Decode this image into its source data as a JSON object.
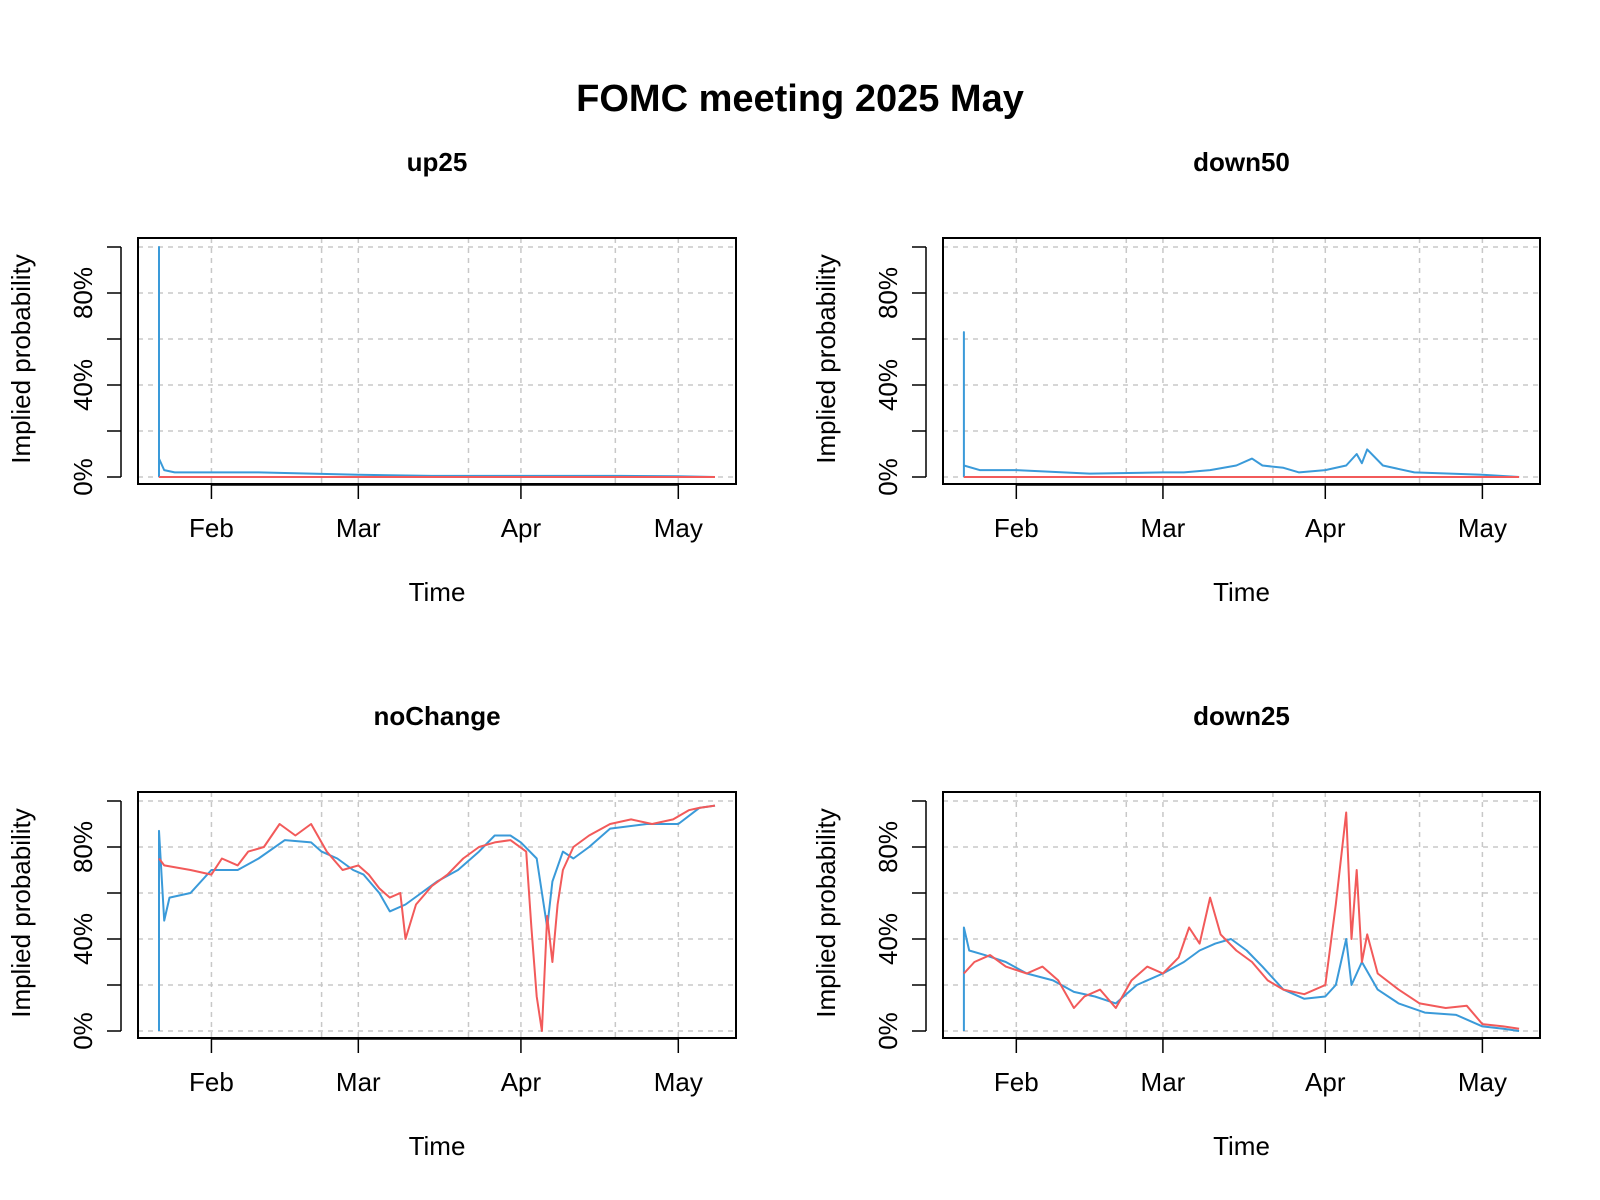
{
  "figure": {
    "title": "FOMC meeting 2025 May",
    "colors": {
      "series_a": "#3A9AD9",
      "series_b": "#F25A5A",
      "grid": "#c8c8c8",
      "axis": "#000000"
    }
  },
  "chart_data": [
    {
      "type": "line",
      "title": "up25",
      "xlabel": "Time",
      "ylabel": "Implied probability",
      "xlim": [
        "2025-01-18",
        "2025-05-12"
      ],
      "ylim": [
        0,
        100
      ],
      "x_ticks": [
        {
          "date": "2025-02-01",
          "label": "Feb"
        },
        {
          "date": "2025-03-01",
          "label": "Mar"
        },
        {
          "date": "2025-04-01",
          "label": "Apr"
        },
        {
          "date": "2025-05-01",
          "label": "May"
        }
      ],
      "y_ticks": [
        {
          "value": 0,
          "label": "0%"
        },
        {
          "value": 20,
          "label": ""
        },
        {
          "value": 40,
          "label": "40%"
        },
        {
          "value": 60,
          "label": ""
        },
        {
          "value": 80,
          "label": "80%"
        },
        {
          "value": 100,
          "label": ""
        }
      ],
      "grid": true,
      "series": [
        {
          "color": "#3A9AD9",
          "points": [
            [
              "2025-01-22",
              0
            ],
            [
              "2025-01-22",
              100
            ],
            [
              "2025-01-22",
              8
            ],
            [
              "2025-01-23",
              3
            ],
            [
              "2025-01-25",
              2
            ],
            [
              "2025-02-01",
              2
            ],
            [
              "2025-02-10",
              2
            ],
            [
              "2025-02-20",
              1.5
            ],
            [
              "2025-03-01",
              1
            ],
            [
              "2025-03-15",
              0.5
            ],
            [
              "2025-04-01",
              0.5
            ],
            [
              "2025-04-10",
              0.5
            ],
            [
              "2025-04-20",
              0.5
            ],
            [
              "2025-05-01",
              0.3
            ],
            [
              "2025-05-08",
              0
            ]
          ]
        },
        {
          "color": "#F25A5A",
          "points": [
            [
              "2025-01-22",
              0
            ],
            [
              "2025-05-08",
              0
            ]
          ]
        }
      ]
    },
    {
      "type": "line",
      "title": "down50",
      "xlabel": "Time",
      "ylabel": "Implied probability",
      "xlim": [
        "2025-01-18",
        "2025-05-12"
      ],
      "ylim": [
        0,
        100
      ],
      "x_ticks": [
        {
          "date": "2025-02-01",
          "label": "Feb"
        },
        {
          "date": "2025-03-01",
          "label": "Mar"
        },
        {
          "date": "2025-04-01",
          "label": "Apr"
        },
        {
          "date": "2025-05-01",
          "label": "May"
        }
      ],
      "y_ticks": [
        {
          "value": 0,
          "label": "0%"
        },
        {
          "value": 20,
          "label": ""
        },
        {
          "value": 40,
          "label": "40%"
        },
        {
          "value": 60,
          "label": ""
        },
        {
          "value": 80,
          "label": "80%"
        },
        {
          "value": 100,
          "label": ""
        }
      ],
      "grid": true,
      "series": [
        {
          "color": "#3A9AD9",
          "points": [
            [
              "2025-01-22",
              0
            ],
            [
              "2025-01-22",
              63
            ],
            [
              "2025-01-22",
              5
            ],
            [
              "2025-01-25",
              3
            ],
            [
              "2025-02-01",
              3
            ],
            [
              "2025-02-15",
              1.5
            ],
            [
              "2025-03-01",
              2
            ],
            [
              "2025-03-05",
              2
            ],
            [
              "2025-03-10",
              3
            ],
            [
              "2025-03-15",
              5
            ],
            [
              "2025-03-18",
              8
            ],
            [
              "2025-03-20",
              5
            ],
            [
              "2025-03-24",
              4
            ],
            [
              "2025-03-27",
              2
            ],
            [
              "2025-04-01",
              3
            ],
            [
              "2025-04-05",
              5
            ],
            [
              "2025-04-07",
              10
            ],
            [
              "2025-04-08",
              6
            ],
            [
              "2025-04-09",
              12
            ],
            [
              "2025-04-12",
              5
            ],
            [
              "2025-04-18",
              2
            ],
            [
              "2025-05-01",
              1
            ],
            [
              "2025-05-08",
              0
            ]
          ]
        },
        {
          "color": "#F25A5A",
          "points": [
            [
              "2025-01-22",
              0
            ],
            [
              "2025-05-08",
              0
            ]
          ]
        }
      ]
    },
    {
      "type": "line",
      "title": "noChange",
      "xlabel": "Time",
      "ylabel": "Implied probability",
      "xlim": [
        "2025-01-18",
        "2025-05-12"
      ],
      "ylim": [
        0,
        100
      ],
      "x_ticks": [
        {
          "date": "2025-02-01",
          "label": "Feb"
        },
        {
          "date": "2025-03-01",
          "label": "Mar"
        },
        {
          "date": "2025-04-01",
          "label": "Apr"
        },
        {
          "date": "2025-05-01",
          "label": "May"
        }
      ],
      "y_ticks": [
        {
          "value": 0,
          "label": "0%"
        },
        {
          "value": 20,
          "label": ""
        },
        {
          "value": 40,
          "label": "40%"
        },
        {
          "value": 60,
          "label": ""
        },
        {
          "value": 80,
          "label": "80%"
        },
        {
          "value": 100,
          "label": ""
        }
      ],
      "grid": true,
      "series": [
        {
          "color": "#3A9AD9",
          "points": [
            [
              "2025-01-22",
              0
            ],
            [
              "2025-01-22",
              87
            ],
            [
              "2025-01-23",
              48
            ],
            [
              "2025-01-24",
              58
            ],
            [
              "2025-01-28",
              60
            ],
            [
              "2025-02-01",
              70
            ],
            [
              "2025-02-06",
              70
            ],
            [
              "2025-02-10",
              75
            ],
            [
              "2025-02-15",
              83
            ],
            [
              "2025-02-20",
              82
            ],
            [
              "2025-02-22",
              78
            ],
            [
              "2025-02-25",
              75
            ],
            [
              "2025-02-28",
              70
            ],
            [
              "2025-03-02",
              68
            ],
            [
              "2025-03-05",
              60
            ],
            [
              "2025-03-07",
              52
            ],
            [
              "2025-03-10",
              55
            ],
            [
              "2025-03-13",
              60
            ],
            [
              "2025-03-16",
              65
            ],
            [
              "2025-03-20",
              70
            ],
            [
              "2025-03-24",
              78
            ],
            [
              "2025-03-27",
              85
            ],
            [
              "2025-03-30",
              85
            ],
            [
              "2025-04-01",
              82
            ],
            [
              "2025-04-04",
              75
            ],
            [
              "2025-04-06",
              45
            ],
            [
              "2025-04-07",
              65
            ],
            [
              "2025-04-09",
              78
            ],
            [
              "2025-04-11",
              75
            ],
            [
              "2025-04-14",
              80
            ],
            [
              "2025-04-18",
              88
            ],
            [
              "2025-04-25",
              90
            ],
            [
              "2025-05-01",
              90
            ],
            [
              "2025-05-05",
              97
            ],
            [
              "2025-05-08",
              98
            ]
          ]
        },
        {
          "color": "#F25A5A",
          "points": [
            [
              "2025-01-22",
              75
            ],
            [
              "2025-01-23",
              72
            ],
            [
              "2025-01-28",
              70
            ],
            [
              "2025-02-01",
              68
            ],
            [
              "2025-02-03",
              75
            ],
            [
              "2025-02-06",
              72
            ],
            [
              "2025-02-08",
              78
            ],
            [
              "2025-02-11",
              80
            ],
            [
              "2025-02-14",
              90
            ],
            [
              "2025-02-17",
              85
            ],
            [
              "2025-02-20",
              90
            ],
            [
              "2025-02-23",
              78
            ],
            [
              "2025-02-26",
              70
            ],
            [
              "2025-03-01",
              72
            ],
            [
              "2025-03-03",
              68
            ],
            [
              "2025-03-05",
              62
            ],
            [
              "2025-03-07",
              58
            ],
            [
              "2025-03-09",
              60
            ],
            [
              "2025-03-10",
              40
            ],
            [
              "2025-03-12",
              55
            ],
            [
              "2025-03-15",
              63
            ],
            [
              "2025-03-18",
              68
            ],
            [
              "2025-03-21",
              75
            ],
            [
              "2025-03-24",
              80
            ],
            [
              "2025-03-27",
              82
            ],
            [
              "2025-03-30",
              83
            ],
            [
              "2025-04-02",
              78
            ],
            [
              "2025-04-03",
              45
            ],
            [
              "2025-04-04",
              15
            ],
            [
              "2025-04-05",
              0
            ],
            [
              "2025-04-06",
              50
            ],
            [
              "2025-04-07",
              30
            ],
            [
              "2025-04-08",
              55
            ],
            [
              "2025-04-09",
              70
            ],
            [
              "2025-04-11",
              80
            ],
            [
              "2025-04-14",
              85
            ],
            [
              "2025-04-18",
              90
            ],
            [
              "2025-04-22",
              92
            ],
            [
              "2025-04-26",
              90
            ],
            [
              "2025-04-30",
              92
            ],
            [
              "2025-05-03",
              96
            ],
            [
              "2025-05-05",
              97
            ],
            [
              "2025-05-08",
              98
            ]
          ]
        }
      ]
    },
    {
      "type": "line",
      "title": "down25",
      "xlabel": "Time",
      "ylabel": "Implied probability",
      "xlim": [
        "2025-01-18",
        "2025-05-12"
      ],
      "ylim": [
        0,
        100
      ],
      "x_ticks": [
        {
          "date": "2025-02-01",
          "label": "Feb"
        },
        {
          "date": "2025-03-01",
          "label": "Mar"
        },
        {
          "date": "2025-04-01",
          "label": "Apr"
        },
        {
          "date": "2025-05-01",
          "label": "May"
        }
      ],
      "y_ticks": [
        {
          "value": 0,
          "label": "0%"
        },
        {
          "value": 20,
          "label": ""
        },
        {
          "value": 40,
          "label": "40%"
        },
        {
          "value": 60,
          "label": ""
        },
        {
          "value": 80,
          "label": "80%"
        },
        {
          "value": 100,
          "label": ""
        }
      ],
      "grid": true,
      "series": [
        {
          "color": "#3A9AD9",
          "points": [
            [
              "2025-01-22",
              0
            ],
            [
              "2025-01-22",
              45
            ],
            [
              "2025-01-23",
              35
            ],
            [
              "2025-01-26",
              33
            ],
            [
              "2025-01-30",
              30
            ],
            [
              "2025-02-03",
              25
            ],
            [
              "2025-02-08",
              22
            ],
            [
              "2025-02-12",
              17
            ],
            [
              "2025-02-16",
              15
            ],
            [
              "2025-02-20",
              12
            ],
            [
              "2025-02-24",
              20
            ],
            [
              "2025-03-01",
              25
            ],
            [
              "2025-03-05",
              30
            ],
            [
              "2025-03-08",
              35
            ],
            [
              "2025-03-11",
              38
            ],
            [
              "2025-03-14",
              40
            ],
            [
              "2025-03-17",
              35
            ],
            [
              "2025-03-20",
              28
            ],
            [
              "2025-03-24",
              18
            ],
            [
              "2025-03-28",
              14
            ],
            [
              "2025-04-01",
              15
            ],
            [
              "2025-04-03",
              20
            ],
            [
              "2025-04-05",
              40
            ],
            [
              "2025-04-06",
              20
            ],
            [
              "2025-04-08",
              30
            ],
            [
              "2025-04-11",
              18
            ],
            [
              "2025-04-15",
              12
            ],
            [
              "2025-04-20",
              8
            ],
            [
              "2025-04-26",
              7
            ],
            [
              "2025-05-01",
              2
            ],
            [
              "2025-05-05",
              1
            ],
            [
              "2025-05-08",
              0
            ]
          ]
        },
        {
          "color": "#F25A5A",
          "points": [
            [
              "2025-01-22",
              25
            ],
            [
              "2025-01-24",
              30
            ],
            [
              "2025-01-27",
              33
            ],
            [
              "2025-01-30",
              28
            ],
            [
              "2025-02-03",
              25
            ],
            [
              "2025-02-06",
              28
            ],
            [
              "2025-02-09",
              22
            ],
            [
              "2025-02-12",
              10
            ],
            [
              "2025-02-14",
              15
            ],
            [
              "2025-02-17",
              18
            ],
            [
              "2025-02-20",
              10
            ],
            [
              "2025-02-23",
              22
            ],
            [
              "2025-02-26",
              28
            ],
            [
              "2025-03-01",
              25
            ],
            [
              "2025-03-04",
              32
            ],
            [
              "2025-03-06",
              45
            ],
            [
              "2025-03-08",
              38
            ],
            [
              "2025-03-10",
              58
            ],
            [
              "2025-03-12",
              42
            ],
            [
              "2025-03-15",
              35
            ],
            [
              "2025-03-18",
              30
            ],
            [
              "2025-03-21",
              22
            ],
            [
              "2025-03-24",
              18
            ],
            [
              "2025-03-28",
              16
            ],
            [
              "2025-04-01",
              20
            ],
            [
              "2025-04-03",
              55
            ],
            [
              "2025-04-05",
              95
            ],
            [
              "2025-04-06",
              40
            ],
            [
              "2025-04-07",
              70
            ],
            [
              "2025-04-08",
              30
            ],
            [
              "2025-04-09",
              42
            ],
            [
              "2025-04-11",
              25
            ],
            [
              "2025-04-15",
              18
            ],
            [
              "2025-04-19",
              12
            ],
            [
              "2025-04-24",
              10
            ],
            [
              "2025-04-28",
              11
            ],
            [
              "2025-05-01",
              3
            ],
            [
              "2025-05-05",
              2
            ],
            [
              "2025-05-08",
              1
            ]
          ]
        }
      ]
    }
  ]
}
